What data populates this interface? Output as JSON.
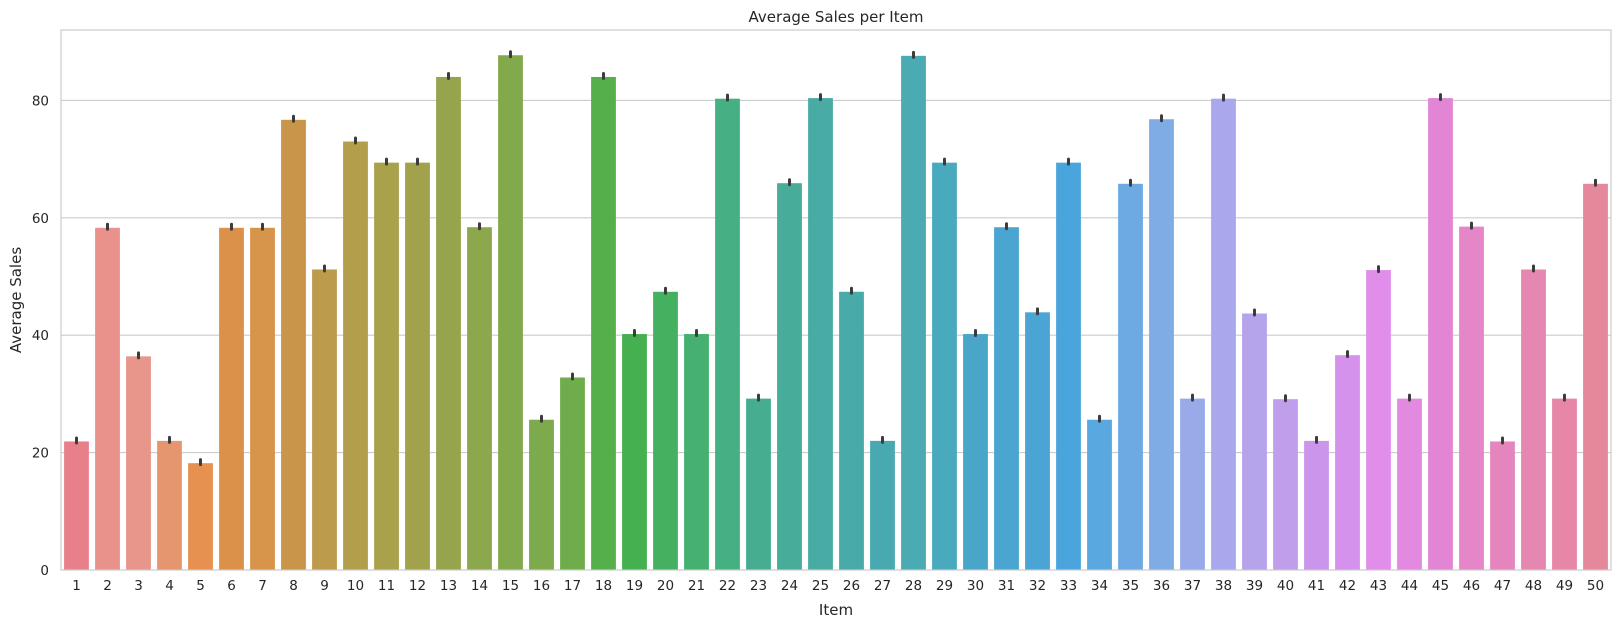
{
  "chart_data": {
    "type": "bar",
    "title": "Average Sales per Item",
    "xlabel": "Item",
    "ylabel": "Average Sales",
    "ylim": [
      0,
      92
    ],
    "yticks": [
      0,
      20,
      40,
      60,
      80
    ],
    "grid": "horizontal",
    "error_bars": true,
    "categories": [
      "1",
      "2",
      "3",
      "4",
      "5",
      "6",
      "7",
      "8",
      "9",
      "10",
      "11",
      "12",
      "13",
      "14",
      "15",
      "16",
      "17",
      "18",
      "19",
      "20",
      "21",
      "22",
      "23",
      "24",
      "25",
      "26",
      "27",
      "28",
      "29",
      "30",
      "31",
      "32",
      "33",
      "34",
      "35",
      "36",
      "37",
      "38",
      "39",
      "40",
      "41",
      "42",
      "43",
      "44",
      "45",
      "46",
      "47",
      "48",
      "49",
      "50"
    ],
    "values": [
      21.9,
      58.3,
      36.4,
      22.0,
      18.2,
      58.3,
      58.3,
      76.7,
      51.2,
      73.0,
      69.4,
      69.4,
      84.0,
      58.4,
      87.7,
      25.6,
      32.8,
      84.0,
      40.2,
      47.4,
      40.2,
      80.3,
      29.2,
      65.9,
      80.4,
      47.4,
      22.0,
      87.6,
      69.4,
      40.2,
      58.4,
      43.9,
      69.4,
      25.6,
      65.8,
      76.8,
      29.2,
      80.3,
      43.7,
      29.1,
      22.0,
      36.6,
      51.1,
      29.2,
      80.4,
      58.5,
      21.9,
      51.2,
      29.2,
      65.8
    ],
    "colors": [
      "#e8808b",
      "#e9918b",
      "#e8958b",
      "#e6966f",
      "#e69150",
      "#dc914a",
      "#d6954a",
      "#c8954a",
      "#bd9b4c",
      "#b39e4c",
      "#aaa14c",
      "#a2a14c",
      "#96a44c",
      "#8da84c",
      "#82aa4c",
      "#7daa4c",
      "#6fad4c",
      "#55b04c",
      "#45b050",
      "#45b060",
      "#45b070",
      "#45b082",
      "#47ad90",
      "#48ac9a",
      "#48aca4",
      "#48abaa",
      "#48aab0",
      "#4aabb2",
      "#4aaabd",
      "#4aa6c8",
      "#4aa6d0",
      "#4aa5d5",
      "#4aa5dd",
      "#5aa8e0",
      "#6daae3",
      "#80ace5",
      "#98abe8",
      "#aaa8ec",
      "#b5a3ec",
      "#c09eec",
      "#cc95ec",
      "#d592ec",
      "#e08eea",
      "#e18ae0",
      "#e285d4",
      "#e486c8",
      "#e486bd",
      "#e687b2",
      "#e687a8",
      "#e6889c"
    ]
  }
}
